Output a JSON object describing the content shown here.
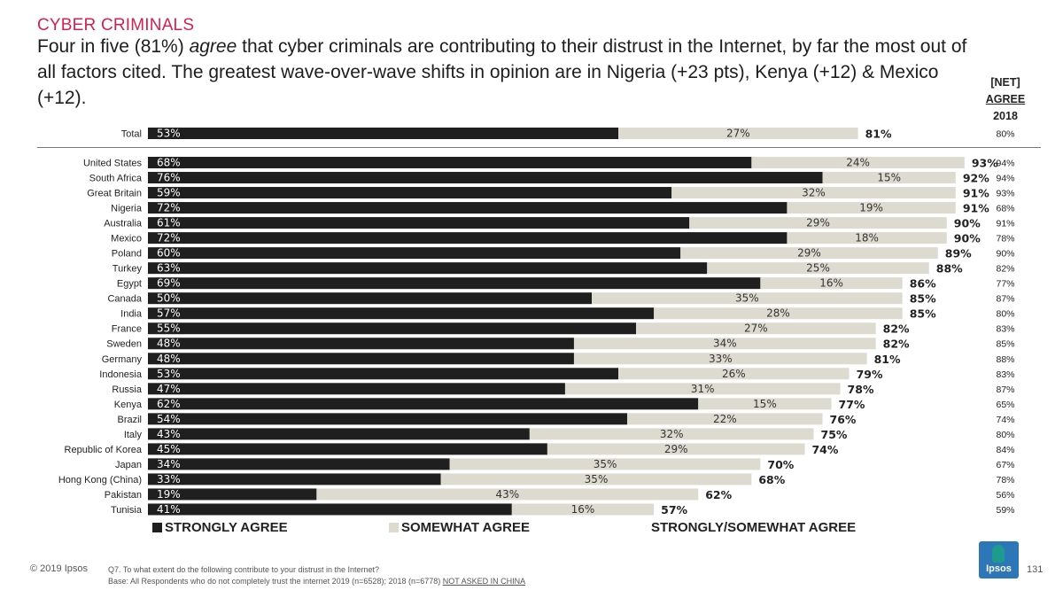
{
  "header": {
    "section_title": "CYBER CRIMINALS",
    "headline_before": "Four in five (81%) ",
    "headline_emph": "agree",
    "headline_after": " that cyber criminals are contributing to their distrust in the Internet, by far the most out of all factors cited. The greatest wave-over-wave shifts in opinion are in Nigeria (+23 pts), Kenya (+12) & Mexico (+12).",
    "net_label": "[NET]",
    "net_agree": "AGREE",
    "net_year": "2018"
  },
  "colors": {
    "strongly": "#1f1f1f",
    "somewhat": "#dddbd0",
    "accent": "#d6204e",
    "logo_blue": "#2d77b8",
    "logo_teal": "#1d9c8e"
  },
  "chart_data": {
    "type": "bar",
    "orientation": "horizontal",
    "stacked": true,
    "xlim": [
      0,
      100
    ],
    "series": [
      {
        "name": "STRONGLY AGREE",
        "color": "#1f1f1f"
      },
      {
        "name": "SOMEWHAT AGREE",
        "color": "#dddbd0"
      }
    ],
    "total_label": "STRONGLY/SOMEWHAT AGREE",
    "rows": [
      {
        "label": "Total",
        "strongly": 53,
        "somewhat": 27,
        "net": "81%",
        "net2018": "80%"
      },
      {
        "label": "United States",
        "strongly": 68,
        "somewhat": 24,
        "net": "93%",
        "net2018": "94%"
      },
      {
        "label": "South Africa",
        "strongly": 76,
        "somewhat": 15,
        "net": "92%",
        "net2018": "94%"
      },
      {
        "label": "Great Britain",
        "strongly": 59,
        "somewhat": 32,
        "net": "91%",
        "net2018": "93%"
      },
      {
        "label": "Nigeria",
        "strongly": 72,
        "somewhat": 19,
        "net": "91%",
        "net2018": "68%"
      },
      {
        "label": "Australia",
        "strongly": 61,
        "somewhat": 29,
        "net": "90%",
        "net2018": "91%"
      },
      {
        "label": "Mexico",
        "strongly": 72,
        "somewhat": 18,
        "net": "90%",
        "net2018": "78%"
      },
      {
        "label": "Poland",
        "strongly": 60,
        "somewhat": 29,
        "net": "89%",
        "net2018": "90%"
      },
      {
        "label": "Turkey",
        "strongly": 63,
        "somewhat": 25,
        "net": "88%",
        "net2018": "82%"
      },
      {
        "label": "Egypt",
        "strongly": 69,
        "somewhat": 16,
        "net": "86%",
        "net2018": "77%"
      },
      {
        "label": "Canada",
        "strongly": 50,
        "somewhat": 35,
        "net": "85%",
        "net2018": "87%"
      },
      {
        "label": "India",
        "strongly": 57,
        "somewhat": 28,
        "net": "85%",
        "net2018": "80%"
      },
      {
        "label": "France",
        "strongly": 55,
        "somewhat": 27,
        "net": "82%",
        "net2018": "83%"
      },
      {
        "label": "Sweden",
        "strongly": 48,
        "somewhat": 34,
        "net": "82%",
        "net2018": "85%"
      },
      {
        "label": "Germany",
        "strongly": 48,
        "somewhat": 33,
        "net": "81%",
        "net2018": "88%"
      },
      {
        "label": "Indonesia",
        "strongly": 53,
        "somewhat": 26,
        "net": "79%",
        "net2018": "83%"
      },
      {
        "label": "Russia",
        "strongly": 47,
        "somewhat": 31,
        "net": "78%",
        "net2018": "87%"
      },
      {
        "label": "Kenya",
        "strongly": 62,
        "somewhat": 15,
        "net": "77%",
        "net2018": "65%"
      },
      {
        "label": "Brazil",
        "strongly": 54,
        "somewhat": 22,
        "net": "76%",
        "net2018": "74%"
      },
      {
        "label": "Italy",
        "strongly": 43,
        "somewhat": 32,
        "net": "75%",
        "net2018": "80%"
      },
      {
        "label": "Republic of Korea",
        "strongly": 45,
        "somewhat": 29,
        "net": "74%",
        "net2018": "84%"
      },
      {
        "label": "Japan",
        "strongly": 34,
        "somewhat": 35,
        "net": "70%",
        "net2018": "67%"
      },
      {
        "label": "Hong Kong (China)",
        "strongly": 33,
        "somewhat": 35,
        "net": "68%",
        "net2018": "78%"
      },
      {
        "label": "Pakistan",
        "strongly": 19,
        "somewhat": 43,
        "net": "62%",
        "net2018": "56%"
      },
      {
        "label": "Tunisia",
        "strongly": 41,
        "somewhat": 16,
        "net": "57%",
        "net2018": "59%"
      }
    ]
  },
  "legend": {
    "strongly": "STRONGLY AGREE",
    "somewhat": "SOMEWHAT AGREE",
    "total": "STRONGLY/SOMEWHAT AGREE"
  },
  "footer": {
    "copyright": "© 2019 Ipsos",
    "question": "Q7.  To what extent do the following contribute to your distrust in the Internet?",
    "base": "Base: All Respondents who do not completely trust the internet 2019 (n=6528); 2018 (n=6778) ",
    "not_asked": "NOT ASKED IN CHINA",
    "page": "131",
    "logo_text": "Ipsos"
  }
}
